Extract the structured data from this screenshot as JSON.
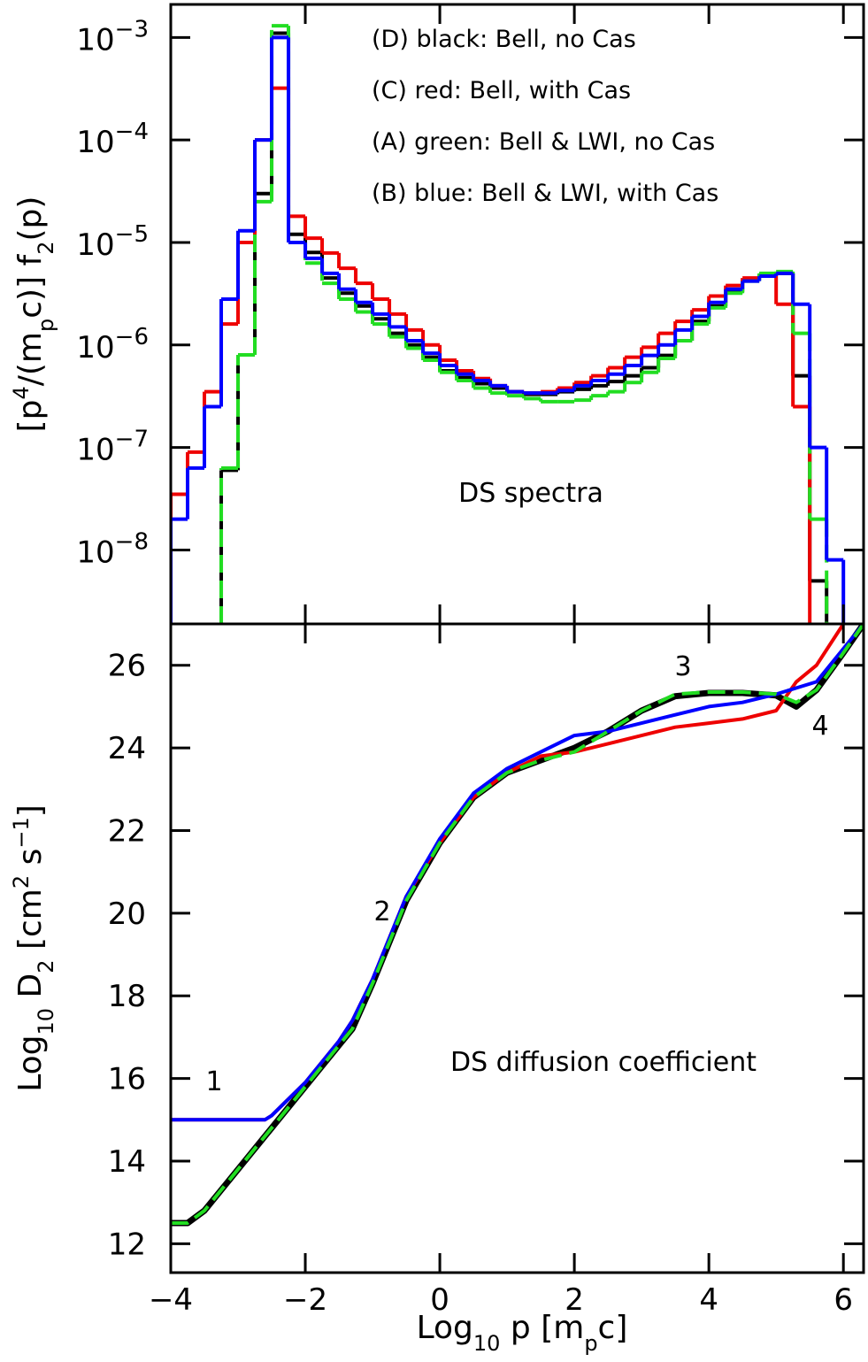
{
  "chart_data": [
    {
      "type": "step",
      "ylabel": [
        {
          "text": "[p"
        },
        {
          "text": "4",
          "script": "super"
        },
        {
          "text": "/(m"
        },
        {
          "text": "p",
          "script": "sub"
        },
        {
          "text": "c)] f"
        },
        {
          "text": "2",
          "script": "sub"
        },
        {
          "text": "(p)"
        }
      ],
      "annotations": [
        "DS spectra"
      ],
      "legend": "top-right",
      "log_y": true,
      "xlim": [
        -4,
        6.3
      ],
      "xticks": [
        -4,
        -2,
        0,
        2,
        4,
        6
      ],
      "show_xtick_labels": false,
      "ylim": [
        1.9e-09,
        0.0021
      ],
      "yticks": [
        {
          "value": 0.001,
          "label": "10",
          "exponent": "−3"
        },
        {
          "value": 0.0001,
          "label": "10",
          "exponent": "−4"
        },
        {
          "value": 1e-05,
          "label": "10",
          "exponent": "−5"
        },
        {
          "value": 1e-06,
          "label": "10",
          "exponent": "−6"
        },
        {
          "value": 1e-07,
          "label": "10",
          "exponent": "−7"
        },
        {
          "value": 1e-08,
          "label": "10",
          "exponent": "−8"
        }
      ],
      "x": [
        -4,
        -3.75,
        -3.5,
        -3.25,
        -3,
        -2.75,
        -2.5,
        -2.25,
        -2,
        -1.75,
        -1.5,
        -1.25,
        -1,
        -0.75,
        -0.5,
        -0.25,
        0,
        0.25,
        0.5,
        0.75,
        1,
        1.25,
        1.5,
        1.75,
        2,
        2.25,
        2.5,
        2.75,
        3,
        3.25,
        3.5,
        3.75,
        4,
        4.25,
        4.5,
        4.75,
        5,
        5.25,
        5.5,
        5.75
      ],
      "series": [
        {
          "name": "(D) black: Bell, no Cas",
          "color": "#000000",
          "values": [
            null,
            null,
            null,
            6e-08,
            8e-07,
            3e-05,
            0.0011,
            1.2e-05,
            8e-06,
            4.5e-06,
            3.2e-06,
            2.4e-06,
            1.8e-06,
            1.3e-06,
            1e-06,
            7.6e-07,
            5.6e-07,
            4.8e-07,
            4.2e-07,
            3.8e-07,
            3.5e-07,
            3.3e-07,
            3.3e-07,
            3.5e-07,
            3.7e-07,
            4e-07,
            4.4e-07,
            5e-07,
            6e-07,
            7.9e-07,
            1.1e-06,
            1.7e-06,
            2.4e-06,
            3.3e-06,
            4.3e-06,
            4.9e-06,
            5e-06,
            5e-07,
            5e-09,
            null
          ]
        },
        {
          "name": "(C) red: Bell, with Cas",
          "color": "#ee0000",
          "values": [
            3.5e-08,
            9e-08,
            3.5e-07,
            1.6e-06,
            1e-05,
            0.0001,
            0.00032,
            1.8e-05,
            1.1e-05,
            7.9e-06,
            5.6e-06,
            4e-06,
            2.8e-06,
            2e-06,
            1.4e-06,
            1e-06,
            7.1e-07,
            5.6e-07,
            4.7e-07,
            4e-07,
            3.5e-07,
            3.4e-07,
            3.5e-07,
            3.8e-07,
            4.3e-07,
            5e-07,
            6e-07,
            7.6e-07,
            9.5e-07,
            1.3e-06,
            1.7e-06,
            2.2e-06,
            3e-06,
            3.8e-06,
            4.5e-06,
            4.8e-06,
            2.5e-06,
            2.5e-07,
            null,
            null
          ]
        },
        {
          "name": "(A) green: Bell & LWI, no Cas",
          "color": "#22dd22",
          "dashed": true,
          "values": [
            null,
            null,
            null,
            6.3e-08,
            8e-07,
            2.5e-05,
            0.0013,
            1e-05,
            6.3e-06,
            4e-06,
            2.8e-06,
            2.1e-06,
            1.6e-06,
            1.2e-06,
            9.3e-07,
            7.1e-07,
            5.4e-07,
            4.5e-07,
            3.8e-07,
            3.4e-07,
            3.2e-07,
            3e-07,
            2.8e-07,
            2.8e-07,
            2.9e-07,
            3.2e-07,
            3.5e-07,
            4.3e-07,
            5.4e-07,
            7.4e-07,
            1.1e-06,
            1.6e-06,
            2.3e-06,
            3.2e-06,
            4.2e-06,
            5e-06,
            5.2e-06,
            1.3e-06,
            2e-08,
            null
          ]
        },
        {
          "name": "(B) blue: Bell & LWI, with Cas",
          "color": "#0000ff",
          "values": [
            2e-08,
            6.3e-08,
            2.5e-07,
            2.8e-06,
            1.3e-05,
            0.0001,
            0.001,
            1e-05,
            7e-06,
            5e-06,
            3.5e-06,
            2.6e-06,
            2e-06,
            1.5e-06,
            1.1e-06,
            8.3e-07,
            6.3e-07,
            5.2e-07,
            4.5e-07,
            4e-07,
            3.5e-07,
            3.4e-07,
            3.4e-07,
            3.6e-07,
            4e-07,
            4.5e-07,
            5.2e-07,
            6.3e-07,
            7.9e-07,
            1e-06,
            1.4e-06,
            1.9e-06,
            2.6e-06,
            3.5e-06,
            4.2e-06,
            4.7e-06,
            5e-06,
            2.5e-06,
            1e-07,
            8e-09
          ]
        }
      ]
    },
    {
      "type": "line",
      "xlabel": [
        {
          "text": "Log"
        },
        {
          "text": "10",
          "script": "sub"
        },
        {
          "text": " p [m"
        },
        {
          "text": "p",
          "script": "sub"
        },
        {
          "text": "c]"
        }
      ],
      "ylabel": [
        {
          "text": "Log"
        },
        {
          "text": "10",
          "script": "sub"
        },
        {
          "text": " D"
        },
        {
          "text": "2",
          "script": "sub"
        },
        {
          "text": " [cm"
        },
        {
          "text": "2",
          "script": "super"
        },
        {
          "text": " s"
        },
        {
          "text": "−1",
          "script": "super"
        },
        {
          "text": "]"
        }
      ],
      "annotations": [
        "1",
        "2",
        "3",
        "4",
        "DS diffusion coefficient"
      ],
      "xlim": [
        -4,
        6.3
      ],
      "xticks": [
        {
          "value": -4,
          "label": "−4"
        },
        {
          "value": -2,
          "label": "−2"
        },
        0,
        2,
        4,
        6
      ],
      "show_xtick_labels": true,
      "ylim": [
        11.3,
        27
      ],
      "yticks": [
        12,
        14,
        16,
        18,
        20,
        22,
        24,
        26
      ],
      "x": [
        -4,
        -3.75,
        -3.5,
        -3,
        -2.6,
        -2.5,
        -2,
        -1.5,
        -1.3,
        -1,
        -0.5,
        0,
        0.5,
        1,
        1.5,
        2,
        2.5,
        3,
        3.5,
        4,
        4.5,
        5,
        5.3,
        5.6,
        6,
        6.3
      ],
      "series": [
        {
          "color": "#000000",
          "width": 7,
          "values": [
            12.5,
            12.5,
            12.8,
            13.8,
            14.6,
            14.8,
            15.8,
            16.8,
            17.2,
            18.3,
            20.3,
            21.7,
            22.8,
            23.4,
            23.7,
            24.0,
            24.4,
            24.9,
            25.25,
            25.33,
            25.33,
            25.27,
            25.0,
            25.4,
            26.3,
            27.0
          ]
        },
        {
          "color": "#ee0000",
          "values": [
            15.0,
            15.0,
            15.0,
            15.0,
            15.0,
            15.1,
            15.9,
            16.9,
            17.4,
            18.4,
            20.4,
            21.7,
            22.8,
            23.4,
            23.8,
            23.9,
            24.1,
            24.3,
            24.5,
            24.6,
            24.7,
            24.9,
            25.6,
            26.0,
            27.0,
            null
          ]
        },
        {
          "color": "#0000ff",
          "values": [
            15.0,
            15.0,
            15.0,
            15.0,
            15.0,
            15.1,
            15.9,
            16.9,
            17.4,
            18.4,
            20.4,
            21.8,
            22.9,
            23.5,
            23.9,
            24.3,
            24.4,
            24.6,
            24.8,
            25.0,
            25.1,
            25.3,
            25.45,
            25.6,
            26.4,
            27.0
          ]
        },
        {
          "color": "#22dd22",
          "dashed": true,
          "values": [
            12.5,
            12.5,
            12.8,
            13.8,
            14.6,
            14.8,
            15.8,
            16.8,
            17.2,
            18.3,
            20.3,
            21.7,
            22.8,
            23.4,
            23.7,
            23.9,
            24.4,
            24.9,
            25.3,
            25.35,
            25.35,
            25.3,
            25.1,
            25.4,
            26.3,
            27.0
          ]
        }
      ]
    }
  ]
}
